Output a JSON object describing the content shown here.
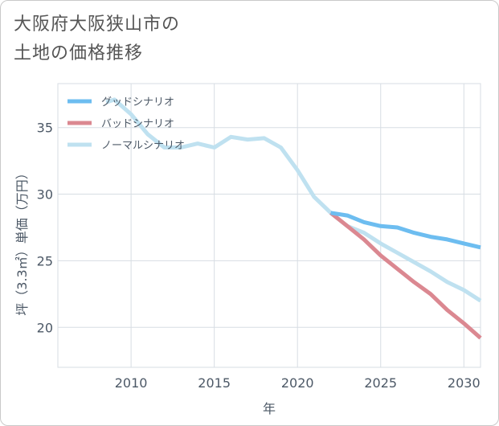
{
  "title_lines": [
    "大阪府大阪狭山市の",
    "土地の価格推移"
  ],
  "chart_data": {
    "type": "line",
    "xlabel": "年",
    "ylabel": "坪（3.3㎡）単価（万円）",
    "xlim": [
      2005.6,
      2031
    ],
    "ylim": [
      17,
      38.3
    ],
    "xticks": [
      2010,
      2015,
      2020,
      2025,
      2030
    ],
    "yticks": [
      20,
      25,
      30,
      35
    ],
    "grid": true,
    "legend_position": "top-left",
    "series": [
      {
        "name": "グッドシナリオ",
        "color": "#6dbdf0",
        "x": [
          2022,
          2023,
          2024,
          2025,
          2026,
          2027,
          2028,
          2029,
          2030,
          2031
        ],
        "y": [
          28.6,
          28.4,
          27.9,
          27.6,
          27.5,
          27.1,
          26.8,
          26.6,
          26.3,
          26.0
        ]
      },
      {
        "name": "バッドシナリオ",
        "color": "#db8891",
        "x": [
          2022,
          2023,
          2024,
          2025,
          2026,
          2027,
          2028,
          2029,
          2030,
          2031
        ],
        "y": [
          28.6,
          27.6,
          26.6,
          25.4,
          24.4,
          23.4,
          22.5,
          21.3,
          20.3,
          19.2
        ]
      },
      {
        "name": "ノーマルシナリオ",
        "color": "#bfe1f0",
        "x": [
          2008.5,
          2009,
          2010,
          2011,
          2012,
          2013,
          2014,
          2015,
          2016,
          2017,
          2018,
          2019,
          2020,
          2021,
          2022,
          2023,
          2024,
          2025,
          2026,
          2027,
          2028,
          2029,
          2030,
          2031
        ],
        "y": [
          36.9,
          37.1,
          36.0,
          34.5,
          33.5,
          33.5,
          33.8,
          33.5,
          34.3,
          34.1,
          34.2,
          33.5,
          31.8,
          29.8,
          28.6,
          27.6,
          27.1,
          26.3,
          25.6,
          24.9,
          24.2,
          23.4,
          22.8,
          22.0
        ]
      }
    ]
  }
}
